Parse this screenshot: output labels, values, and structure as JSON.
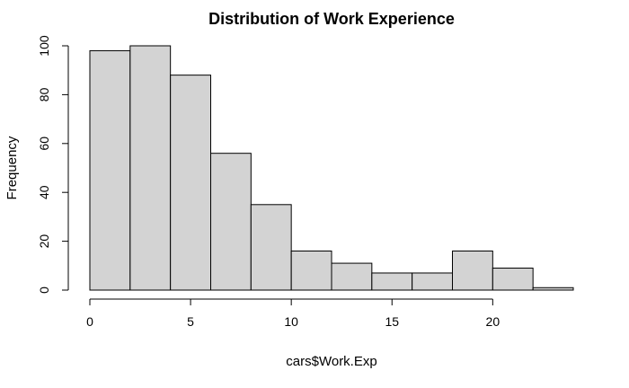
{
  "chart_data": {
    "type": "bar",
    "title": "Distribution of Work Experience",
    "xlabel": "cars$Work.Exp",
    "ylabel": "Frequency",
    "bin_edges": [
      0,
      2,
      4,
      6,
      8,
      10,
      12,
      14,
      16,
      18,
      20,
      22,
      24
    ],
    "values": [
      98,
      100,
      88,
      56,
      35,
      16,
      11,
      7,
      7,
      16,
      9,
      1
    ],
    "xlim": [
      0,
      24
    ],
    "ylim": [
      0,
      100
    ],
    "x_ticks": [
      0,
      5,
      10,
      15,
      20
    ],
    "y_ticks": [
      0,
      20,
      40,
      60,
      80,
      100
    ],
    "grid": false,
    "bar_color": "#d3d3d3",
    "edge_color": "#000000"
  }
}
